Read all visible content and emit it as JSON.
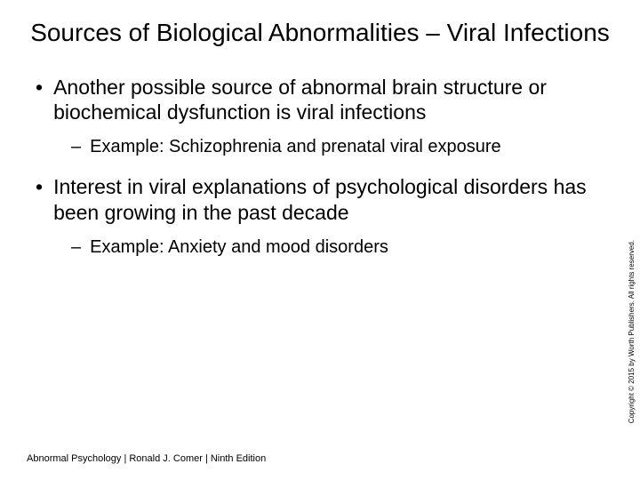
{
  "title": "Sources of Biological Abnormalities – Viral Infections",
  "bullets": {
    "item1": {
      "text": "Another possible source of abnormal brain structure or biochemical dysfunction is viral infections",
      "sub1": "Example: Schizophrenia and prenatal viral exposure"
    },
    "item2": {
      "text": "Interest in viral explanations of psychological disorders has been growing in the past decade",
      "sub1": "Example: Anxiety and mood disorders"
    }
  },
  "footer": "Abnormal Psychology | Ronald J. Comer | Ninth Edition",
  "copyright": "Copyright © 2015 by Worth Publishers. All rights reserved.",
  "colors": {
    "background": "#ffffff",
    "text": "#000000"
  },
  "typography": {
    "title_fontsize": 28,
    "bullet1_fontsize": 23,
    "bullet2_fontsize": 20,
    "footer_fontsize": 11,
    "copyright_fontsize": 8,
    "font_family": "Arial"
  }
}
